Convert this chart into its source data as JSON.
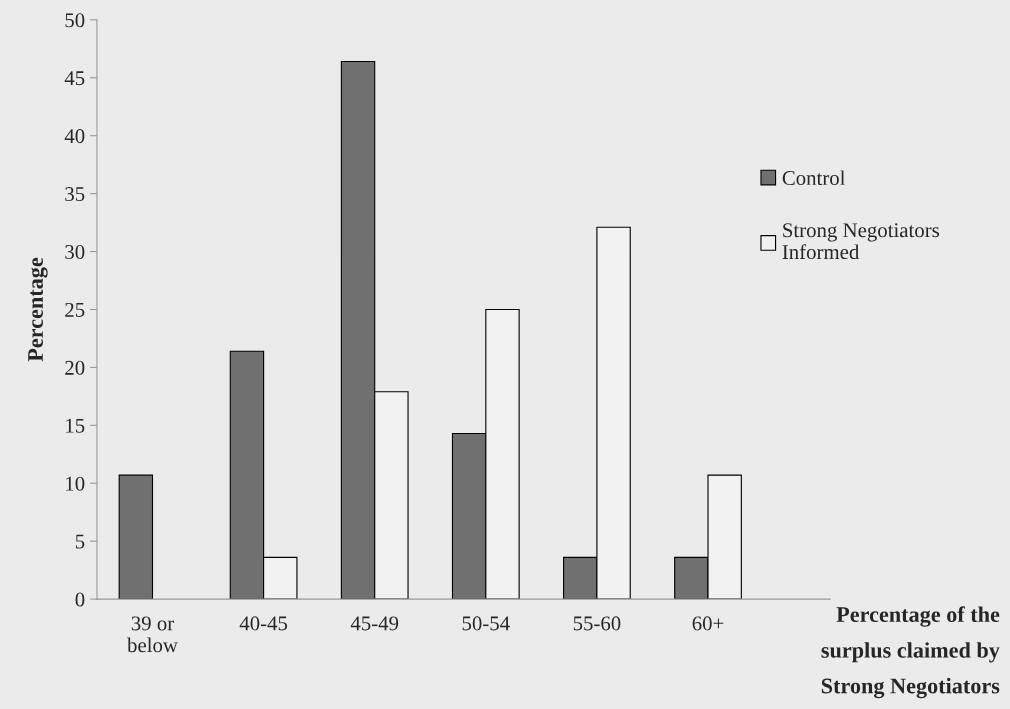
{
  "chart_data": {
    "type": "bar",
    "xlabel": "Percentage of the\nsurplus claimed by\nStrong Negotiators",
    "ylabel": "Percentage",
    "categories": [
      "39 or\nbelow",
      "40-45",
      "45-49",
      "50-54",
      "55-60",
      "60+"
    ],
    "series": [
      {
        "name": "Control",
        "color": "#707070",
        "values": [
          10.7,
          21.4,
          46.4,
          14.3,
          3.6,
          3.6
        ]
      },
      {
        "name": "Strong Negotiators\nInformed",
        "color": "#f2f2f2",
        "values": [
          null,
          3.6,
          17.9,
          25,
          32.1,
          10.7
        ]
      }
    ],
    "ylim": [
      0,
      50
    ],
    "yticks": [
      0,
      5,
      10,
      15,
      20,
      25,
      30,
      35,
      40,
      45,
      50
    ],
    "grid": false,
    "legend": "right"
  }
}
